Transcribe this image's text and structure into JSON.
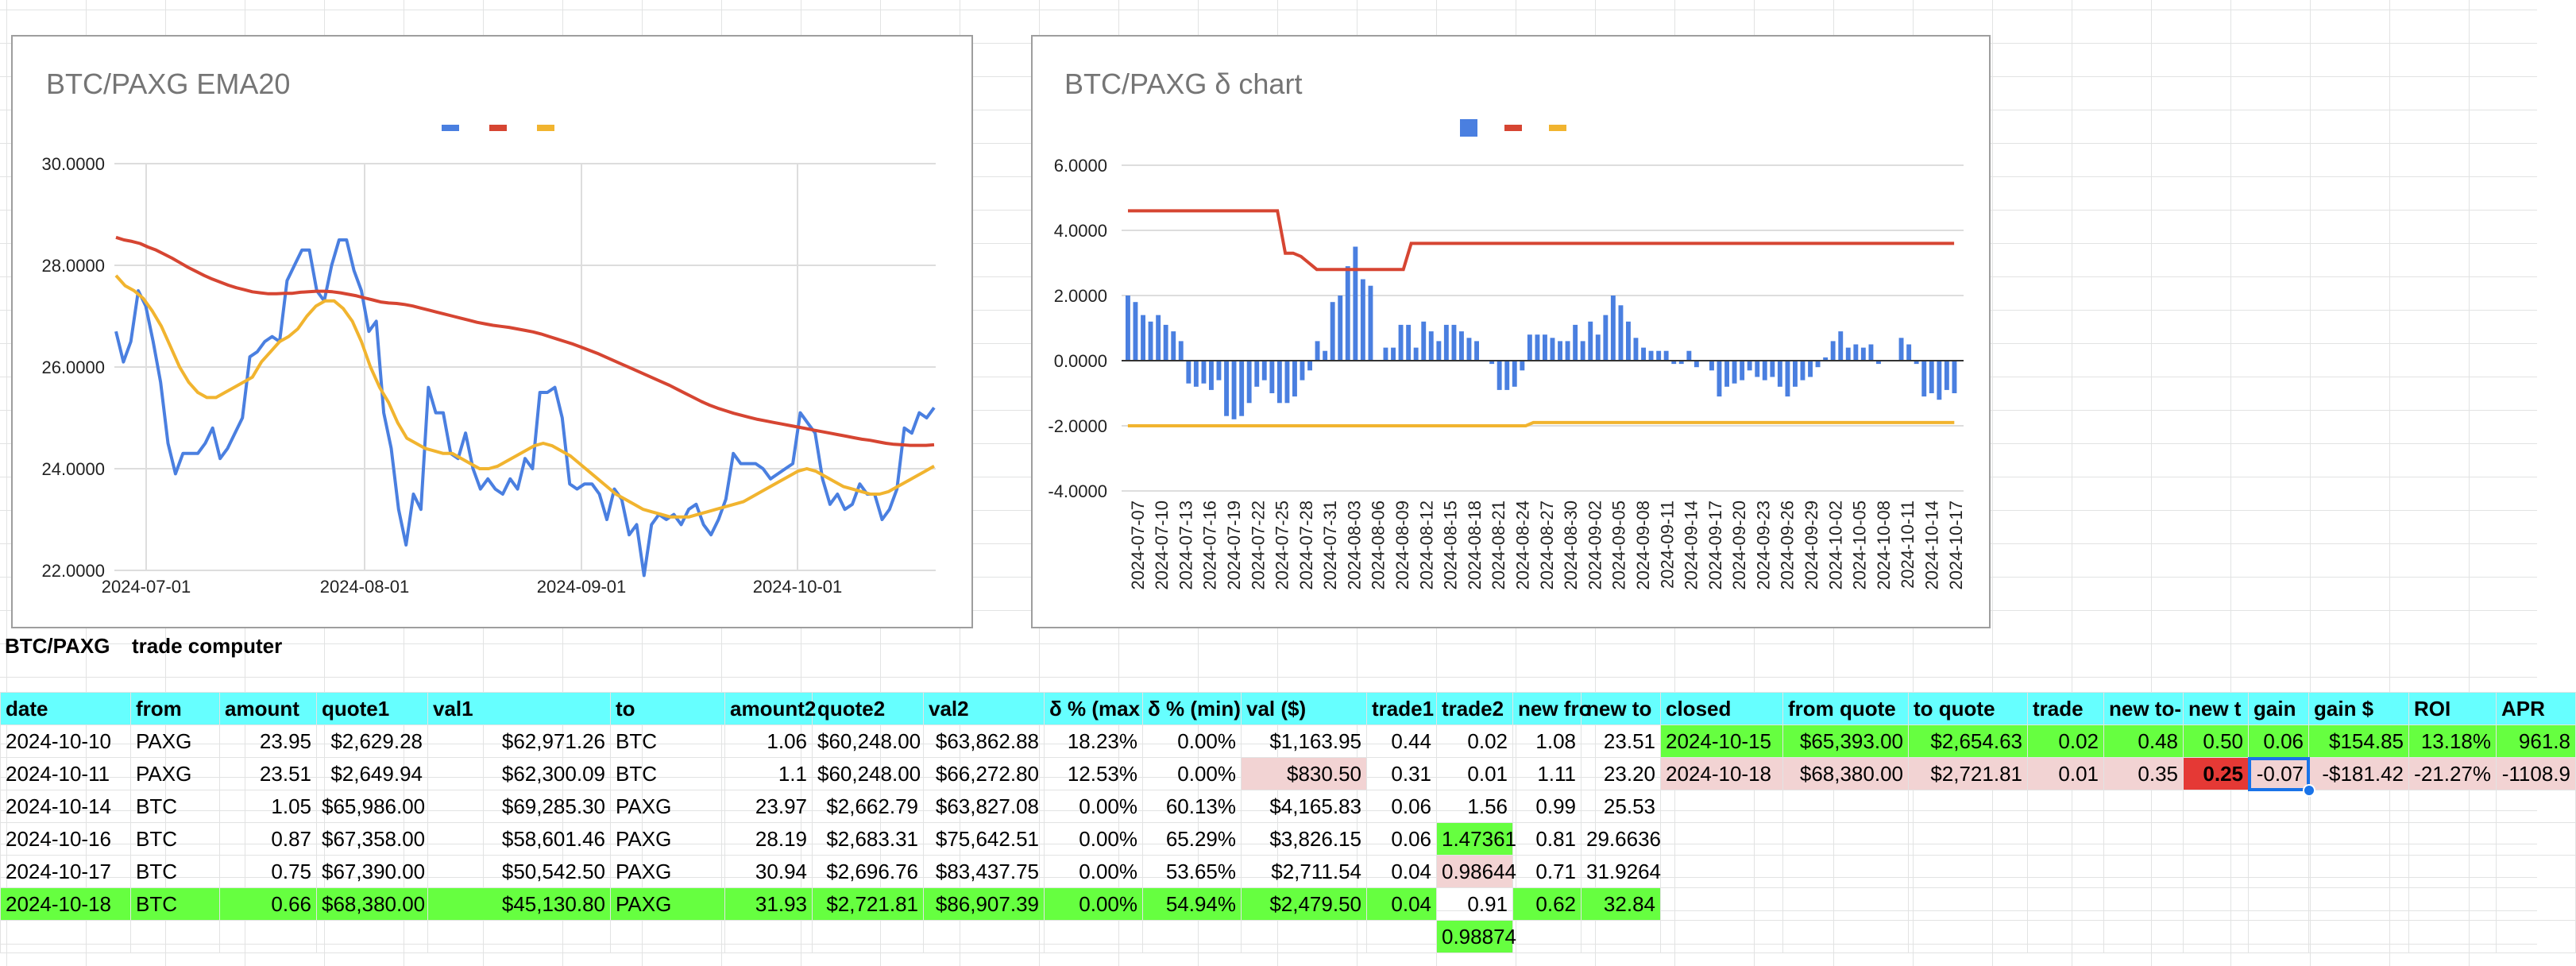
{
  "charts": {
    "ema": {
      "title": "BTC/PAXG EMA20",
      "legend_colors": [
        "#4a7fe0",
        "#d64532",
        "#f1b42f"
      ],
      "y_ticks": [
        "30.0000",
        "28.0000",
        "26.0000",
        "24.0000",
        "22.0000"
      ],
      "x_ticks": [
        "2024-07-01",
        "2024-08-01",
        "2024-09-01",
        "2024-10-01"
      ]
    },
    "delta": {
      "title": "BTC/PAXG δ chart",
      "legend_colors": [
        "#4a7fe0",
        "#d64532",
        "#f1b42f"
      ],
      "y_ticks": [
        "6.0000",
        "4.0000",
        "2.0000",
        "0.0000",
        "-2.0000",
        "-4.0000"
      ],
      "x_ticks": [
        "2024-07-07",
        "2024-07-10",
        "2024-07-13",
        "2024-07-16",
        "2024-07-19",
        "2024-07-22",
        "2024-07-25",
        "2024-07-28",
        "2024-07-31",
        "2024-08-03",
        "2024-08-06",
        "2024-08-09",
        "2024-08-12",
        "2024-08-15",
        "2024-08-18",
        "2024-08-21",
        "2024-08-24",
        "2024-08-27",
        "2024-08-30",
        "2024-09-02",
        "2024-09-05",
        "2024-09-08",
        "2024-09-11",
        "2024-09-14",
        "2024-09-17",
        "2024-09-20",
        "2024-09-23",
        "2024-09-26",
        "2024-09-29",
        "2024-10-02",
        "2024-10-05",
        "2024-10-08",
        "2024-10-11",
        "2024-10-14",
        "2024-10-17"
      ]
    }
  },
  "chart_data": [
    {
      "type": "line",
      "title": "BTC/PAXG EMA20",
      "ylim": [
        22,
        30
      ],
      "x_ticks": [
        "2024-07-01",
        "2024-08-01",
        "2024-09-01",
        "2024-10-01"
      ],
      "grid": true,
      "legend": "top",
      "series": [
        {
          "color": "#4a7fe0",
          "values": [
            26.7,
            26.1,
            26.5,
            27.5,
            27.2,
            26.5,
            25.7,
            24.5,
            23.9,
            24.3,
            24.3,
            24.3,
            24.5,
            24.8,
            24.2,
            24.4,
            24.7,
            25.0,
            26.2,
            26.3,
            26.5,
            26.6,
            26.5,
            27.7,
            28.0,
            28.3,
            28.3,
            27.5,
            27.3,
            28.0,
            28.5,
            28.5,
            27.9,
            27.5,
            26.7,
            26.9,
            25.1,
            24.4,
            23.2,
            22.5,
            23.5,
            23.2,
            25.6,
            25.1,
            25.1,
            24.3,
            24.2,
            24.7,
            24.0,
            23.6,
            23.8,
            23.6,
            23.5,
            23.8,
            23.6,
            24.2,
            24.0,
            25.5,
            25.5,
            25.6,
            25.0,
            23.7,
            23.6,
            23.7,
            23.7,
            23.5,
            23.0,
            23.6,
            23.4,
            22.7,
            22.9,
            21.9,
            22.9,
            23.1,
            23.0,
            23.1,
            22.9,
            23.2,
            23.3,
            22.9,
            22.7,
            23.0,
            23.4,
            24.3,
            24.1,
            24.1,
            24.1,
            24.0,
            23.8,
            23.9,
            24.0,
            24.1,
            25.1,
            24.9,
            24.7,
            23.8,
            23.3,
            23.5,
            23.2,
            23.3,
            23.7,
            23.5,
            23.5,
            23.0,
            23.2,
            23.6,
            24.8,
            24.7,
            25.1,
            25.0,
            25.2
          ]
        },
        {
          "color": "#d64532",
          "values": [
            28.55,
            28.5,
            28.47,
            28.43,
            28.36,
            28.3,
            28.22,
            28.14,
            28.05,
            27.96,
            27.88,
            27.8,
            27.73,
            27.67,
            27.61,
            27.56,
            27.52,
            27.48,
            27.46,
            27.44,
            27.44,
            27.45,
            27.45,
            27.47,
            27.48,
            27.49,
            27.49,
            27.48,
            27.46,
            27.43,
            27.4,
            27.36,
            27.32,
            27.28,
            27.26,
            27.25,
            27.23,
            27.2,
            27.16,
            27.12,
            27.08,
            27.04,
            27.0,
            26.96,
            26.92,
            26.88,
            26.85,
            26.82,
            26.8,
            26.78,
            26.75,
            26.72,
            26.69,
            26.65,
            26.6,
            26.55,
            26.5,
            26.45,
            26.39,
            26.33,
            26.27,
            26.2,
            26.13,
            26.06,
            25.99,
            25.92,
            25.85,
            25.78,
            25.71,
            25.64,
            25.56,
            25.48,
            25.4,
            25.32,
            25.25,
            25.19,
            25.14,
            25.09,
            25.05,
            25.01,
            24.97,
            24.94,
            24.91,
            24.88,
            24.85,
            24.82,
            24.79,
            24.76,
            24.73,
            24.7,
            24.67,
            24.64,
            24.61,
            24.58,
            24.56,
            24.53,
            24.5,
            24.48,
            24.47,
            24.46,
            24.46,
            24.46,
            24.47
          ]
        },
        {
          "color": "#f1b42f",
          "values": [
            27.8,
            27.6,
            27.5,
            27.35,
            27.1,
            26.8,
            26.4,
            26.0,
            25.7,
            25.5,
            25.4,
            25.4,
            25.5,
            25.6,
            25.7,
            25.8,
            26.1,
            26.3,
            26.5,
            26.6,
            26.75,
            27.0,
            27.2,
            27.3,
            27.3,
            27.15,
            26.9,
            26.5,
            26.0,
            25.6,
            25.3,
            24.9,
            24.6,
            24.5,
            24.4,
            24.35,
            24.3,
            24.3,
            24.2,
            24.1,
            24.0,
            24.0,
            24.05,
            24.15,
            24.25,
            24.35,
            24.45,
            24.5,
            24.45,
            24.35,
            24.25,
            24.1,
            23.95,
            23.8,
            23.65,
            23.5,
            23.4,
            23.3,
            23.2,
            23.15,
            23.1,
            23.05,
            23.05,
            23.05,
            23.1,
            23.15,
            23.2,
            23.25,
            23.3,
            23.35,
            23.45,
            23.55,
            23.65,
            23.75,
            23.85,
            23.95,
            24.0,
            23.95,
            23.85,
            23.75,
            23.65,
            23.6,
            23.55,
            23.5,
            23.5,
            23.55,
            23.65,
            23.75,
            23.85,
            23.95,
            24.05
          ]
        }
      ]
    },
    {
      "type": "bar",
      "title": "BTC/PAXG δ chart",
      "ylim": [
        -4,
        6
      ],
      "grid": true,
      "legend": "top",
      "x_ticks": [
        "2024-07-07",
        "2024-07-10",
        "2024-07-13",
        "2024-07-16",
        "2024-07-19",
        "2024-07-22",
        "2024-07-25",
        "2024-07-28",
        "2024-07-31",
        "2024-08-03",
        "2024-08-06",
        "2024-08-09",
        "2024-08-12",
        "2024-08-15",
        "2024-08-18",
        "2024-08-21",
        "2024-08-24",
        "2024-08-27",
        "2024-08-30",
        "2024-09-02",
        "2024-09-05",
        "2024-09-08",
        "2024-09-11",
        "2024-09-14",
        "2024-09-17",
        "2024-09-20",
        "2024-09-23",
        "2024-09-26",
        "2024-09-29",
        "2024-10-02",
        "2024-10-05",
        "2024-10-08",
        "2024-10-11",
        "2024-10-14",
        "2024-10-17"
      ],
      "series": [
        {
          "color": "#4a7fe0",
          "kind": "bar",
          "values": [
            2.0,
            1.8,
            1.4,
            1.2,
            1.4,
            1.1,
            0.9,
            0.6,
            -0.7,
            -0.8,
            -0.7,
            -0.9,
            -0.6,
            -1.7,
            -1.8,
            -1.7,
            -1.3,
            -0.8,
            -0.6,
            -1.0,
            -1.3,
            -1.3,
            -1.1,
            -0.6,
            -0.3,
            0.6,
            0.3,
            1.8,
            2.0,
            2.9,
            3.5,
            2.5,
            2.3,
            0.0,
            0.4,
            0.4,
            1.1,
            1.1,
            0.4,
            1.2,
            0.9,
            0.6,
            1.1,
            1.1,
            0.9,
            0.7,
            0.6,
            0.0,
            -0.1,
            -0.9,
            -0.9,
            -0.8,
            -0.3,
            0.8,
            0.8,
            0.8,
            0.7,
            0.6,
            0.6,
            1.1,
            0.6,
            1.2,
            0.8,
            1.4,
            2.0,
            1.7,
            1.2,
            0.7,
            0.4,
            0.3,
            0.3,
            0.3,
            -0.1,
            -0.1,
            0.3,
            -0.2,
            0.0,
            -0.3,
            -1.1,
            -0.8,
            -0.7,
            -0.6,
            -0.3,
            -0.5,
            -0.6,
            -0.5,
            -0.8,
            -1.1,
            -0.8,
            -0.6,
            -0.5,
            -0.2,
            0.1,
            0.6,
            0.9,
            0.4,
            0.5,
            0.4,
            0.5,
            -0.1,
            0.0,
            0.0,
            0.7,
            0.5,
            -0.1,
            -1.1,
            -1.0,
            -1.2,
            -0.9,
            -1.0
          ]
        },
        {
          "color": "#d64532",
          "kind": "line",
          "values": [
            4.6,
            4.6,
            4.6,
            4.6,
            4.6,
            4.6,
            4.6,
            4.6,
            4.6,
            4.6,
            4.6,
            4.6,
            4.6,
            4.6,
            4.6,
            4.6,
            4.6,
            4.6,
            4.6,
            4.6,
            3.3,
            3.3,
            3.2,
            3.0,
            2.8,
            2.8,
            2.8,
            2.8,
            2.8,
            2.8,
            2.8,
            2.8,
            2.8,
            2.8,
            2.8,
            2.8,
            3.6,
            3.6,
            3.6,
            3.6,
            3.6,
            3.6,
            3.6,
            3.6,
            3.6,
            3.6,
            3.6,
            3.6,
            3.6,
            3.6,
            3.6,
            3.6,
            3.6,
            3.6,
            3.6,
            3.6,
            3.6,
            3.6,
            3.6,
            3.6,
            3.6,
            3.6,
            3.6,
            3.6,
            3.6,
            3.6,
            3.6,
            3.6,
            3.6,
            3.6,
            3.6,
            3.6,
            3.6,
            3.6,
            3.6,
            3.6,
            3.6,
            3.6,
            3.6,
            3.6,
            3.6,
            3.6,
            3.6,
            3.6,
            3.6,
            3.6,
            3.6,
            3.6,
            3.6,
            3.6,
            3.6,
            3.6,
            3.6,
            3.6,
            3.6,
            3.6,
            3.6,
            3.6,
            3.6,
            3.6,
            3.6,
            3.6,
            3.6,
            3.6,
            3.6,
            3.6
          ]
        },
        {
          "color": "#f1b42f",
          "kind": "line",
          "values": [
            -2.0,
            -2.0,
            -2.0,
            -2.0,
            -2.0,
            -2.0,
            -2.0,
            -2.0,
            -2.0,
            -2.0,
            -2.0,
            -2.0,
            -2.0,
            -2.0,
            -2.0,
            -2.0,
            -2.0,
            -2.0,
            -2.0,
            -2.0,
            -2.0,
            -2.0,
            -2.0,
            -2.0,
            -2.0,
            -2.0,
            -2.0,
            -2.0,
            -2.0,
            -2.0,
            -2.0,
            -2.0,
            -2.0,
            -2.0,
            -2.0,
            -2.0,
            -2.0,
            -2.0,
            -2.0,
            -2.0,
            -2.0,
            -2.0,
            -2.0,
            -2.0,
            -2.0,
            -2.0,
            -2.0,
            -2.0,
            -2.0,
            -2.0,
            -2.0,
            -2.0,
            -2.0,
            -1.9,
            -1.9,
            -1.9,
            -1.9,
            -1.9,
            -1.9,
            -1.9,
            -1.9,
            -1.9,
            -1.9,
            -1.9,
            -1.9,
            -1.9,
            -1.9,
            -1.9,
            -1.9,
            -1.9,
            -1.9,
            -1.9,
            -1.9,
            -1.9,
            -1.9,
            -1.9,
            -1.9,
            -1.9,
            -1.9,
            -1.9,
            -1.9,
            -1.9,
            -1.9,
            -1.9,
            -1.9,
            -1.9,
            -1.9,
            -1.9,
            -1.9,
            -1.9,
            -1.9,
            -1.9,
            -1.9,
            -1.9,
            -1.9,
            -1.9,
            -1.9,
            -1.9,
            -1.9,
            -1.9,
            -1.9,
            -1.9,
            -1.9,
            -1.9,
            -1.9,
            -1.9,
            -1.9,
            -1.9,
            -1.9
          ]
        }
      ]
    }
  ],
  "labels": {
    "pair": "BTC/PAXG",
    "computer": "trade computer"
  },
  "table": {
    "headers": [
      "date",
      "from",
      "amount",
      "quote1",
      "val1",
      "to",
      "amount2",
      "quote2",
      "val2",
      "δ % (max",
      "δ % (min)",
      "val ($)",
      "trade1",
      "trade2",
      "new fro",
      "new to",
      "closed",
      "from quote",
      "to quote",
      "trade",
      "new to-",
      "new t",
      "gain",
      "gain $",
      "ROI",
      "APR"
    ],
    "rows": [
      [
        "2024-10-10",
        "PAXG",
        "23.95",
        "$2,629.28",
        "$62,971.26",
        "BTC",
        "1.06",
        "$60,248.00",
        "$63,862.88",
        "18.23%",
        "0.00%",
        "$1,163.95",
        "0.44",
        "0.02",
        "1.08",
        "23.51",
        "2024-10-15",
        "$65,393.00",
        "$2,654.63",
        "0.02",
        "0.48",
        "0.50",
        "0.06",
        "$154.85",
        "13.18%",
        "961.8"
      ],
      [
        "2024-10-11",
        "PAXG",
        "23.51",
        "$2,649.94",
        "$62,300.09",
        "BTC",
        "1.1",
        "$60,248.00",
        "$66,272.80",
        "12.53%",
        "0.00%",
        "$830.50",
        "0.31",
        "0.01",
        "1.11",
        "23.20",
        "2024-10-18",
        "$68,380.00",
        "$2,721.81",
        "0.01",
        "0.35",
        "0.25",
        "-0.07",
        "-$181.42",
        "-21.27%",
        "-1108.9"
      ],
      [
        "2024-10-14",
        "BTC",
        "1.05",
        "$65,986.00",
        "$69,285.30",
        "PAXG",
        "23.97",
        "$2,662.79",
        "$63,827.08",
        "0.00%",
        "60.13%",
        "$4,165.83",
        "0.06",
        "1.56",
        "0.99",
        "25.53",
        "",
        "",
        "",
        "",
        "",
        "",
        "",
        "",
        "",
        ""
      ],
      [
        "2024-10-16",
        "BTC",
        "0.87",
        "$67,358.00",
        "$58,601.46",
        "PAXG",
        "28.19",
        "$2,683.31",
        "$75,642.51",
        "0.00%",
        "65.29%",
        "$3,826.15",
        "0.06",
        "1.47361",
        "0.81",
        "29.6636",
        "",
        "",
        "",
        "",
        "",
        "",
        "",
        "",
        "",
        ""
      ],
      [
        "2024-10-17",
        "BTC",
        "0.75",
        "$67,390.00",
        "$50,542.50",
        "PAXG",
        "30.94",
        "$2,696.76",
        "$83,437.75",
        "0.00%",
        "53.65%",
        "$2,711.54",
        "0.04",
        "0.98644",
        "0.71",
        "31.9264",
        "",
        "",
        "",
        "",
        "",
        "",
        "",
        "",
        "",
        ""
      ],
      [
        "2024-10-18",
        "BTC",
        "0.66",
        "$68,380.00",
        "$45,130.80",
        "PAXG",
        "31.93",
        "$2,721.81",
        "$86,907.39",
        "0.00%",
        "54.94%",
        "$2,479.50",
        "0.04",
        "0.91",
        "0.62",
        "32.84",
        "",
        "",
        "",
        "",
        "",
        "",
        "",
        "",
        "",
        ""
      ],
      [
        "",
        "",
        "",
        "",
        "",
        "",
        "",
        "",
        "",
        "",
        "",
        "",
        "",
        "0.98874",
        "",
        "",
        "",
        "",
        "",
        "",
        "",
        "",
        "",
        "",
        "",
        ""
      ]
    ]
  }
}
